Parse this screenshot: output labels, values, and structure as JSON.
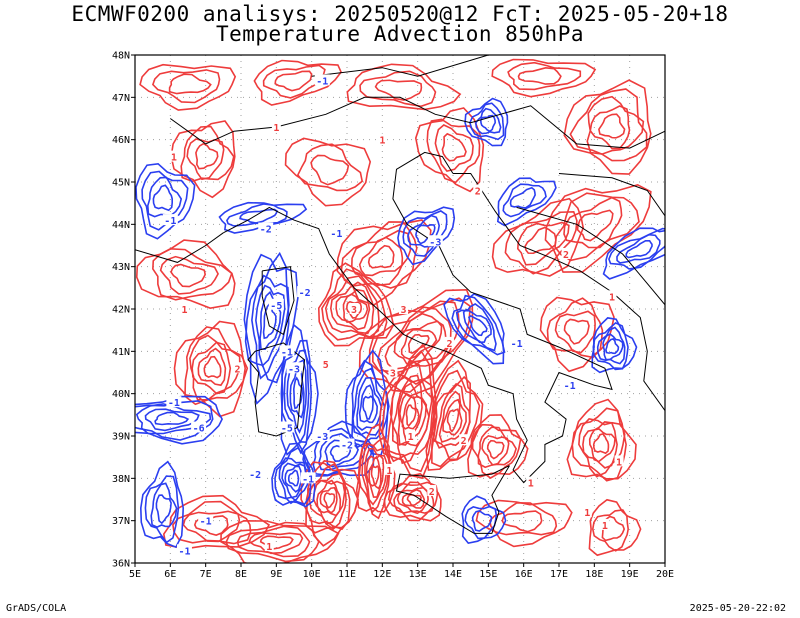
{
  "header": {
    "title_line1": "ECMWF0200 analisys: 20250520@12 FcT: 2025-05-20+18",
    "title_line2": "Temperature Advection 850hPa"
  },
  "map": {
    "lat_labels": [
      "48N",
      "47N",
      "46N",
      "45N",
      "44N",
      "43N",
      "42N",
      "41N",
      "40N",
      "39N",
      "38N",
      "37N",
      "36N"
    ],
    "lon_labels": [
      "5E",
      "6E",
      "7E",
      "8E",
      "9E",
      "10E",
      "11E",
      "12E",
      "13E",
      "14E",
      "15E",
      "16E",
      "17E",
      "18E",
      "19E",
      "20E"
    ],
    "extent": {
      "lon_min": 5,
      "lon_max": 20,
      "lat_min": 36,
      "lat_max": 48
    },
    "colors": {
      "positive": "#ee3c3c",
      "negative": "#2b3ff0",
      "coast": "#000000",
      "grid": "#a0a0a0"
    },
    "contour_labels": [
      "-1",
      "1",
      "2",
      "-2",
      "-3",
      "3",
      "5",
      "-5",
      "-6"
    ]
  },
  "footer": {
    "left": "GrADS/COLA",
    "right": "2025-05-20-22:02"
  }
}
